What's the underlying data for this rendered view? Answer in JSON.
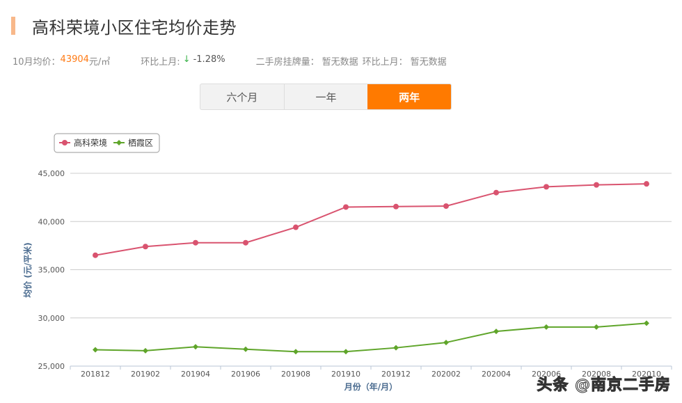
{
  "header": {
    "title": "高科荣境小区住宅均价走势",
    "accent_color": "#f8b88a"
  },
  "stats": {
    "avg_label": "10月均价：",
    "avg_value": "43904",
    "avg_unit": "元/㎡",
    "mom_label": "环比上月:",
    "mom_arrow": "↓",
    "mom_value": "-1.28%",
    "listing_label": "二手房挂牌量：",
    "listing_value": "暂无数据",
    "listing_mom_label": "环比上月：",
    "listing_mom_value": "暂无数据"
  },
  "tabs": [
    {
      "label": "六个月",
      "active": false
    },
    {
      "label": "一年",
      "active": false
    },
    {
      "label": "两年",
      "active": true
    }
  ],
  "colors": {
    "accent": "#ff7a00",
    "series_1": "#d9536f",
    "series_2": "#5fa52a",
    "axis_title": "#4a6b8f"
  },
  "watermark": "头条 @南京二手房",
  "chart_data": {
    "type": "line",
    "title": "",
    "xlabel": "月份（年/月）",
    "ylabel": "均价 (元/平米)",
    "ylim": [
      25000,
      45000
    ],
    "yticks": [
      "25,000",
      "30,000",
      "35,000",
      "40,000",
      "45,000"
    ],
    "grid": true,
    "legend_position": "top-left",
    "categories": [
      "201812",
      "201902",
      "201904",
      "201906",
      "201908",
      "201910",
      "201912",
      "202002",
      "202004",
      "202006",
      "202008",
      "202010"
    ],
    "series": [
      {
        "name": "高科荣境",
        "marker": "circle",
        "color": "#d9536f",
        "values": [
          36500,
          37400,
          37800,
          37800,
          39400,
          41500,
          41550,
          41600,
          43000,
          43600,
          43800,
          43904
        ]
      },
      {
        "name": "栖霞区",
        "marker": "diamond",
        "color": "#5fa52a",
        "values": [
          26700,
          26600,
          27000,
          26750,
          26500,
          26500,
          26900,
          27450,
          28600,
          29050,
          29050,
          29450
        ]
      }
    ]
  }
}
